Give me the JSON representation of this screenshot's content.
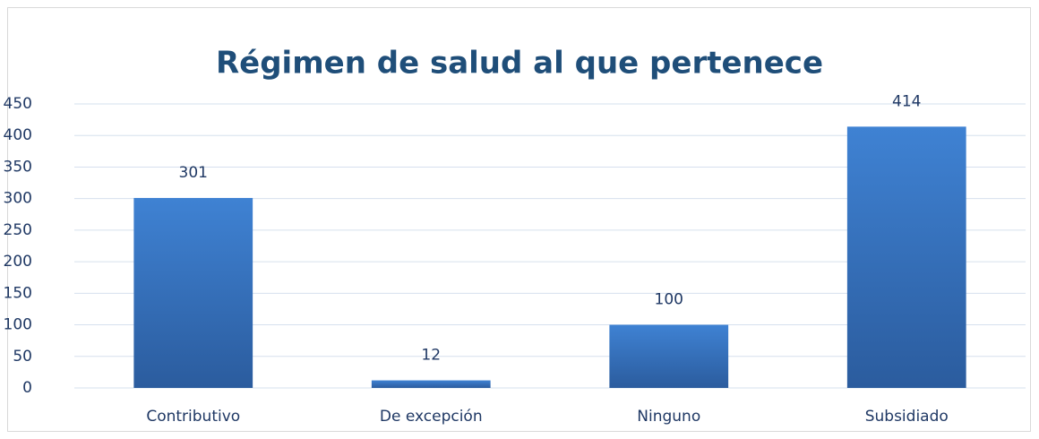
{
  "chart_data": {
    "type": "bar",
    "title": "Régimen de salud al que pertenece",
    "categories": [
      "Contributivo",
      "De excepción",
      "Ninguno",
      "Subsidiado"
    ],
    "values": [
      301,
      12,
      100,
      414
    ],
    "color": "#3a78c6",
    "ylim": [
      0,
      450
    ],
    "yticks": [
      0,
      50,
      100,
      150,
      200,
      250,
      300,
      350,
      400,
      450
    ],
    "grid": true
  }
}
